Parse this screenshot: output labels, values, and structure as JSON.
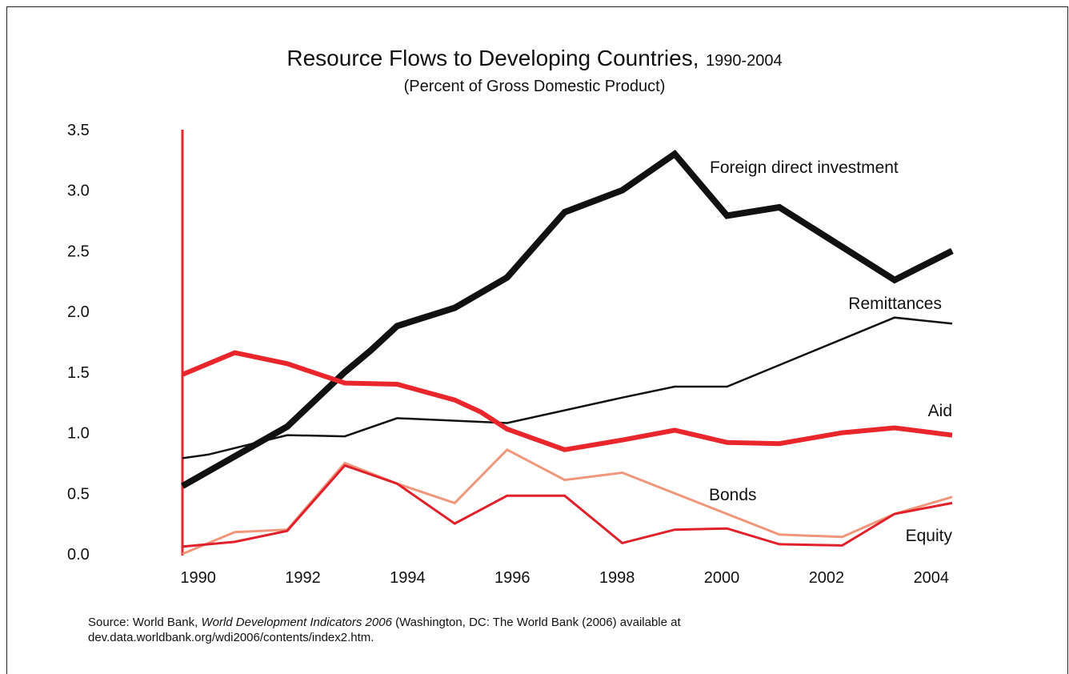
{
  "chart_data": {
    "type": "line",
    "title": "Resource Flows to Developing Countries,",
    "title_years": "1990-2004",
    "subtitle": "(Percent of Gross Domestic Product)",
    "xlim": [
      1989.7,
      2004.4
    ],
    "xticks": [
      1990,
      1992,
      1994,
      1996,
      1998,
      2000,
      2002,
      2004
    ],
    "ylim": [
      0,
      3.5
    ],
    "yticks": [
      {
        "value": 0,
        "label": "0.0"
      },
      0.5,
      {
        "value": 1,
        "label": "1.0"
      },
      1.5,
      {
        "value": 2,
        "label": "2.0"
      },
      2.5,
      {
        "value": 3,
        "label": "3.0"
      },
      3.5
    ],
    "grid": false,
    "series": [
      {
        "name": "Foreign direct investment",
        "color": "#111111",
        "x": [
          1989.7,
          1991.7,
          1992.8,
          1993.3,
          1993.8,
          1994.9,
          1995.9,
          1997.0,
          1998.1,
          1999.1,
          2000.1,
          2001.1,
          2003.3,
          2004.4
        ],
        "values": [
          0.56,
          1.05,
          1.5,
          1.68,
          1.88,
          2.03,
          2.28,
          2.82,
          3.0,
          3.3,
          2.79,
          2.86,
          2.26,
          2.5
        ]
      },
      {
        "name": "Remittances",
        "color": "#111111",
        "x": [
          1989.7,
          1990.2,
          1991.7,
          1992.8,
          1993.8,
          1995.9,
          1998.1,
          1999.1,
          2000.1,
          2003.3,
          2004.4
        ],
        "values": [
          0.79,
          0.82,
          0.98,
          0.97,
          1.12,
          1.08,
          1.29,
          1.38,
          1.38,
          1.95,
          1.9
        ]
      },
      {
        "name": "Aid",
        "color": "#e8262b",
        "x": [
          1989.7,
          1990.7,
          1991.7,
          1992.8,
          1993.8,
          1994.9,
          1995.4,
          1995.9,
          1997.0,
          1998.1,
          1999.1,
          2000.1,
          2001.1,
          2002.3,
          2003.3,
          2004.4
        ],
        "values": [
          1.48,
          1.66,
          1.57,
          1.41,
          1.4,
          1.27,
          1.17,
          1.03,
          0.86,
          0.94,
          1.02,
          0.92,
          0.91,
          1.0,
          1.04,
          0.98
        ]
      },
      {
        "name": "Bonds",
        "color": "#f0967a",
        "x": [
          1989.7,
          1990.7,
          1991.7,
          1992.8,
          1993.8,
          1994.9,
          1995.9,
          1997.0,
          1998.1,
          2001.1,
          2002.3,
          2003.3,
          2004.4
        ],
        "values": [
          0,
          0.18,
          0.2,
          0.75,
          0.58,
          0.42,
          0.86,
          0.61,
          0.67,
          0.16,
          0.14,
          0.33,
          0.47
        ]
      },
      {
        "name": "Equity",
        "color": "#e0202a",
        "x": [
          1989.7,
          1990.7,
          1991.7,
          1992.8,
          1993.8,
          1994.9,
          1995.9,
          1997.0,
          1998.1,
          1999.1,
          2000.1,
          2001.1,
          2002.3,
          2003.3,
          2004.4
        ],
        "values": [
          0.06,
          0.1,
          0.19,
          0.73,
          0.58,
          0.25,
          0.48,
          0.48,
          0.09,
          0.2,
          0.21,
          0.08,
          0.07,
          0.33,
          0.42
        ]
      }
    ],
    "source": {
      "prefix": "Source:  World Bank, ",
      "work": "World Development Indicators 2006",
      "rest": " (Washington, DC: The World Bank (2006) available at",
      "url": "dev.data.worldbank.org/wdi2006/contents/index2.htm."
    }
  }
}
